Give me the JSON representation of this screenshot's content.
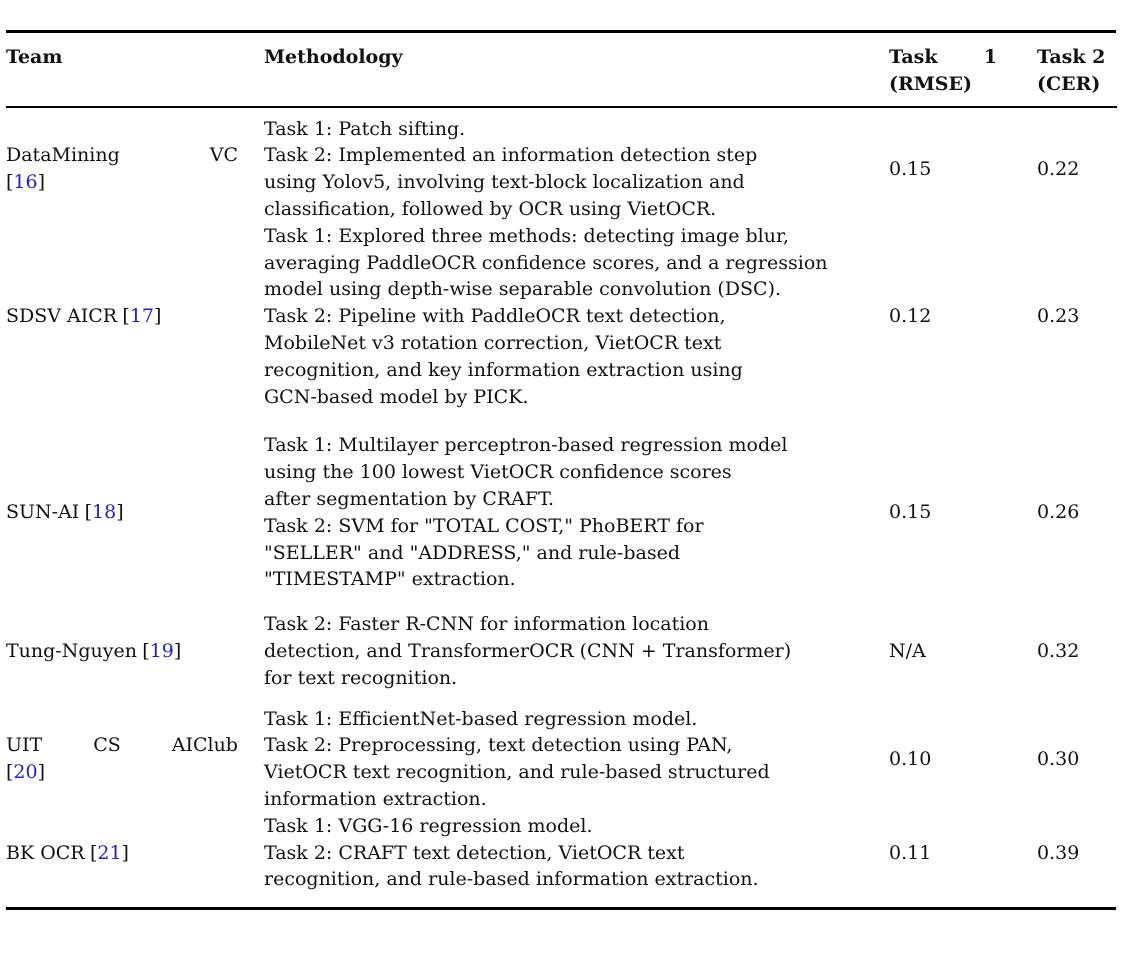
{
  "colors": {
    "background": "#ffffff",
    "text": "#111111",
    "rule": "#000000",
    "cite_link": "#2222cc"
  },
  "symbols": {
    "lbracket": "[",
    "rbracket": "]"
  },
  "header": {
    "team": "Team",
    "methodology": "Methodology",
    "task1_word1": "Task",
    "task1_word2": "1",
    "task1_sub": "(RMSE)",
    "task2_main": "Task 2",
    "task2_sub": "(CER)"
  },
  "rows": [
    {
      "team": {
        "words": [
          "DataMining",
          "VC"
        ],
        "cite": "16"
      },
      "methodology": "Task 1: Patch sifting.\nTask 2: Implemented an information detection step\nusing Yolov5, involving text-block localization and\nclassification, followed by OCR using VietOCR.",
      "task1": "0.15",
      "task2": "0.22"
    },
    {
      "team": {
        "name": "SDSV AICR",
        "cite": "17"
      },
      "methodology": "Task 1: Explored three methods: detecting image blur,\naveraging PaddleOCR confidence scores, and a regression\nmodel using depth-wise separable convolution (DSC).\nTask 2: Pipeline with PaddleOCR text detection,\nMobileNet v3 rotation correction, VietOCR text\nrecognition, and key information extraction using\nGCN-based model by PICK.",
      "task1": "0.12",
      "task2": "0.23"
    },
    {
      "team": {
        "name": "SUN-AI",
        "cite": "18"
      },
      "methodology": "Task 1: Multilayer perceptron-based regression model\nusing the 100 lowest VietOCR confidence scores\nafter segmentation by CRAFT.\nTask 2: SVM for \"TOTAL COST,\" PhoBERT for\n\"SELLER\" and \"ADDRESS,\" and rule-based\n\"TIMESTAMP\" extraction.",
      "task1": "0.15",
      "task2": "0.26"
    },
    {
      "team": {
        "name": "Tung-Nguyen",
        "cite": "19"
      },
      "methodology": "Task 2: Faster R-CNN for information location\ndetection, and TransformerOCR (CNN + Transformer)\nfor text recognition.",
      "task1": "N/A",
      "task2": "0.32"
    },
    {
      "team": {
        "words": [
          "UIT",
          "CS",
          "AIClub"
        ],
        "cite": "20"
      },
      "methodology": "Task 1: EfficientNet-based regression model.\nTask 2: Preprocessing, text detection using PAN,\nVietOCR text recognition, and rule-based structured\ninformation extraction.",
      "task1": "0.10",
      "task2": "0.30"
    },
    {
      "team": {
        "name": "BK OCR",
        "cite": "21"
      },
      "methodology": "Task 1: VGG-16 regression model.\nTask 2: CRAFT text detection, VietOCR text\nrecognition, and rule-based information extraction.",
      "task1": "0.11",
      "task2": "0.39"
    }
  ]
}
